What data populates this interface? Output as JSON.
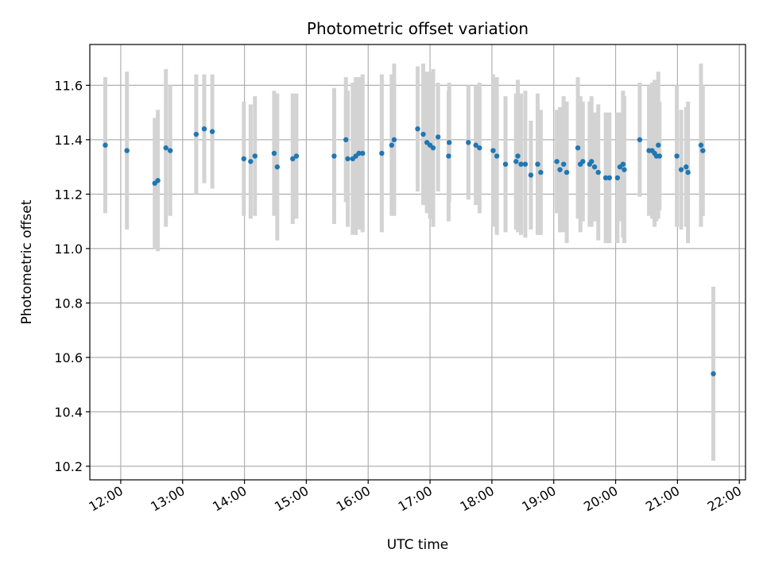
{
  "chart_data": {
    "type": "scatter",
    "title": "Photometric offset variation",
    "xlabel": "UTC time",
    "ylabel": "Photometric offset",
    "grid": true,
    "x_unit": "hours UTC",
    "xlim": [
      11.5,
      22.1
    ],
    "ylim": [
      10.15,
      11.75
    ],
    "x_ticks": [
      12,
      13,
      14,
      15,
      16,
      17,
      18,
      19,
      20,
      21,
      22
    ],
    "x_tick_labels": [
      "12:00",
      "13:00",
      "14:00",
      "15:00",
      "16:00",
      "17:00",
      "18:00",
      "19:00",
      "20:00",
      "21:00",
      "22:00"
    ],
    "y_ticks": [
      10.2,
      10.4,
      10.6,
      10.8,
      11.0,
      11.2,
      11.4,
      11.6
    ],
    "y_tick_labels": [
      "10.2",
      "10.4",
      "10.6",
      "10.8",
      "11.0",
      "11.2",
      "11.4",
      "11.6"
    ],
    "colors": {
      "points": "#1f77b4",
      "error_bars": "#d3d3d3",
      "grid": "#b0b0b0"
    },
    "series": [
      {
        "x": [
          11.75,
          12.1,
          12.55,
          12.6,
          12.73,
          12.8,
          13.22,
          13.35,
          13.48,
          13.99,
          14.1,
          14.17,
          14.48,
          14.53,
          14.78,
          14.84,
          15.45,
          15.64,
          15.67,
          15.75,
          15.8,
          15.85,
          15.91,
          16.22,
          16.38,
          16.42,
          16.8,
          16.89,
          16.95,
          17.0,
          17.05,
          17.13,
          17.3,
          17.31,
          17.62,
          17.74,
          17.8,
          18.02,
          18.08,
          18.22,
          18.39,
          18.42,
          18.47,
          18.54,
          18.63,
          18.74,
          18.79,
          19.05,
          19.1,
          19.16,
          19.21,
          19.39,
          19.43,
          19.47,
          19.58,
          19.61,
          19.66,
          19.72,
          19.84,
          19.9,
          20.03,
          20.07,
          20.12,
          20.14,
          20.39,
          20.54,
          20.59,
          20.63,
          20.66,
          20.69,
          20.71,
          20.99,
          21.06,
          21.14,
          21.17,
          21.38,
          21.41,
          21.58
        ],
        "y": [
          11.38,
          11.36,
          11.24,
          11.25,
          11.37,
          11.36,
          11.42,
          11.44,
          11.43,
          11.33,
          11.32,
          11.34,
          11.35,
          11.3,
          11.33,
          11.34,
          11.34,
          11.4,
          11.33,
          11.33,
          11.34,
          11.35,
          11.35,
          11.35,
          11.38,
          11.4,
          11.44,
          11.42,
          11.39,
          11.38,
          11.37,
          11.41,
          11.34,
          11.39,
          11.39,
          11.38,
          11.37,
          11.36,
          11.34,
          11.31,
          11.32,
          11.34,
          11.31,
          11.31,
          11.27,
          11.31,
          11.28,
          11.32,
          11.29,
          11.31,
          11.28,
          11.37,
          11.31,
          11.32,
          11.31,
          11.32,
          11.3,
          11.28,
          11.26,
          11.26,
          11.26,
          11.3,
          11.31,
          11.29,
          11.4,
          11.36,
          11.36,
          11.35,
          11.34,
          11.38,
          11.34,
          11.34,
          11.29,
          11.3,
          11.28,
          11.38,
          11.36,
          10.54
        ],
        "err": [
          0.25,
          0.29,
          0.24,
          0.26,
          0.29,
          0.24,
          0.22,
          0.2,
          0.21,
          0.21,
          0.21,
          0.22,
          0.23,
          0.27,
          0.24,
          0.23,
          0.25,
          0.23,
          0.25,
          0.28,
          0.29,
          0.28,
          0.29,
          0.29,
          0.26,
          0.28,
          0.23,
          0.26,
          0.26,
          0.27,
          0.29,
          0.2,
          0.24,
          0.22,
          0.21,
          0.22,
          0.24,
          0.28,
          0.29,
          0.25,
          0.25,
          0.28,
          0.26,
          0.27,
          0.2,
          0.26,
          0.23,
          0.19,
          0.23,
          0.25,
          0.26,
          0.26,
          0.25,
          0.22,
          0.23,
          0.24,
          0.2,
          0.25,
          0.24,
          0.24,
          0.24,
          0.2,
          0.27,
          0.27,
          0.21,
          0.24,
          0.25,
          0.27,
          0.24,
          0.27,
          0.2,
          0.26,
          0.22,
          0.22,
          0.26,
          0.3,
          0.24,
          0.32
        ]
      }
    ]
  }
}
